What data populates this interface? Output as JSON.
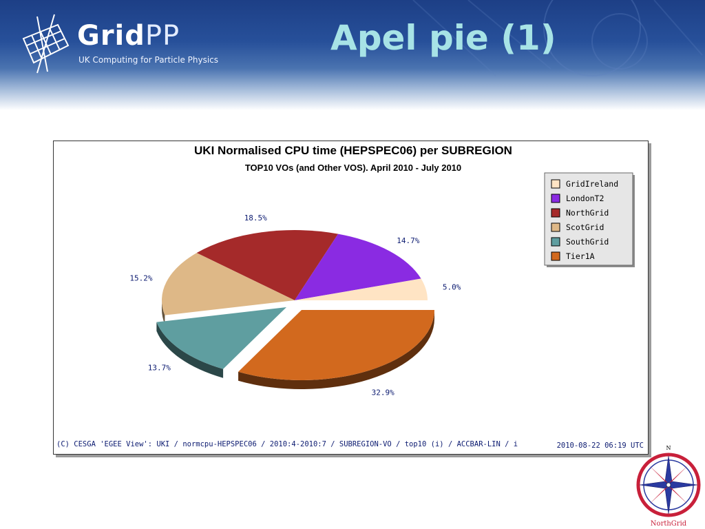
{
  "slide": {
    "logo_grid": "Grid",
    "logo_pp": "PP",
    "logo_subtitle": "UK Computing for Particle Physics",
    "title": "Apel pie (1)",
    "compass_north": "N",
    "compass_caption": "NorthGrid"
  },
  "colors": {
    "header_dark": "#1d3f86",
    "title_text": "#a7e3e6",
    "label_text": "#0b1a70"
  },
  "chart_data": {
    "type": "pie",
    "title": "UKI Normalised CPU time (HEPSPEC06) per SUBREGION",
    "subtitle": "TOP10 VOs (and Other VOS). April 2010 - July 2010",
    "legend_position": "top-right",
    "slices": [
      {
        "name": "GridIreland",
        "percent": 5.0,
        "label": "5.0%",
        "color": "#ffe4c4"
      },
      {
        "name": "LondonT2",
        "percent": 14.7,
        "label": "14.7%",
        "color": "#8a2be2"
      },
      {
        "name": "NorthGrid",
        "percent": 18.5,
        "label": "18.5%",
        "color": "#a52a2a"
      },
      {
        "name": "ScotGrid",
        "percent": 15.2,
        "label": "15.2%",
        "color": "#deb887"
      },
      {
        "name": "SouthGrid",
        "percent": 13.7,
        "label": "13.7%",
        "color": "#5f9ea0"
      },
      {
        "name": "Tier1A",
        "percent": 32.9,
        "label": "32.9%",
        "color": "#d2691e"
      }
    ],
    "footer_left": "(C) CESGA 'EGEE View': UKI / normcpu-HEPSPEC06 / 2010:4-2010:7 / SUBREGION-VO / top10 (i) / ACCBAR-LIN / i",
    "footer_right": "2010-08-22 06:19 UTC"
  }
}
